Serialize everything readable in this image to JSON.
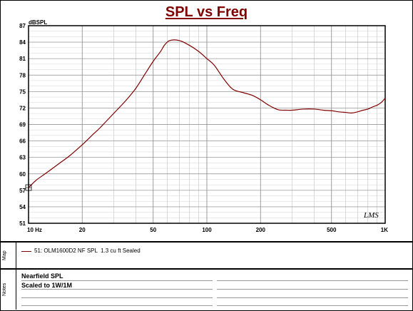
{
  "chart_data": {
    "type": "line",
    "title": "SPL vs Freq",
    "ylabel": "dBSPL",
    "xlabel": "",
    "x_scale": "log",
    "xlim": [
      10,
      1000
    ],
    "ylim": [
      51,
      87
    ],
    "x_ticks": [
      {
        "value": 10,
        "label": "10 Hz"
      },
      {
        "value": 20,
        "label": "20"
      },
      {
        "value": 50,
        "label": "50"
      },
      {
        "value": 100,
        "label": "100"
      },
      {
        "value": 200,
        "label": "200"
      },
      {
        "value": 500,
        "label": "500"
      },
      {
        "value": 1000,
        "label": "1K"
      }
    ],
    "y_ticks": [
      87,
      84,
      81,
      78,
      75,
      72,
      69,
      66,
      63,
      60,
      57,
      54,
      51
    ],
    "grid": true,
    "series": [
      {
        "name": "51: OLM1600D2 NF SPL  1.3 cu ft Sealed",
        "color": "#800000",
        "x": [
          10,
          11,
          12,
          13,
          15,
          17,
          20,
          23,
          25,
          30,
          35,
          40,
          45,
          50,
          55,
          58,
          62,
          70,
          80,
          90,
          100,
          110,
          125,
          140,
          160,
          180,
          200,
          220,
          250,
          280,
          300,
          350,
          400,
          450,
          500,
          550,
          600,
          650,
          700,
          750,
          800,
          850,
          900,
          950,
          1000
        ],
        "y": [
          57.5,
          58.8,
          59.7,
          60.5,
          62.0,
          63.3,
          65.3,
          67.2,
          68.3,
          71.0,
          73.3,
          75.6,
          78.2,
          80.5,
          82.3,
          83.5,
          84.3,
          84.3,
          83.4,
          82.3,
          81.0,
          79.8,
          77.2,
          75.4,
          74.8,
          74.3,
          73.5,
          72.6,
          71.7,
          71.6,
          71.6,
          71.8,
          71.8,
          71.6,
          71.5,
          71.3,
          71.2,
          71.1,
          71.3,
          71.6,
          71.8,
          72.2,
          72.5,
          73.0,
          73.8
        ]
      }
    ]
  },
  "watermark": "LMS",
  "panels": {
    "map_label": "Map",
    "notes_label": "Notes",
    "legend_text": "51: OLM1600D2 NF SPL  1.3 cu ft Sealed",
    "notes": [
      "Nearfield SPL",
      "Scaled to 1W/1M"
    ]
  }
}
